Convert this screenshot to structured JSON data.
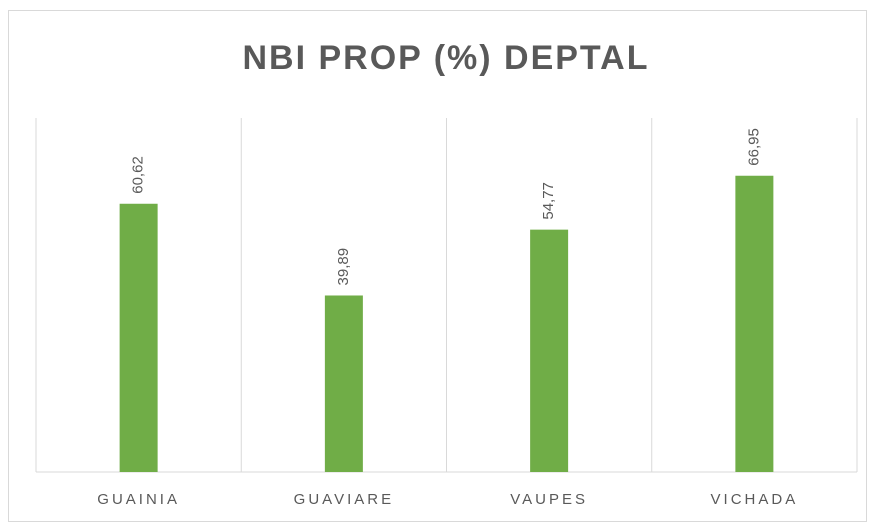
{
  "chart_data": {
    "type": "bar",
    "title": "NBI PROP (%) DEPTAL",
    "categories": [
      "GUAINIA",
      "GUAVIARE",
      "VAUPES",
      "VICHADA"
    ],
    "values": [
      60.62,
      39.89,
      54.77,
      66.95
    ],
    "value_labels": [
      "60,62",
      "39,89",
      "54,77",
      "66,95"
    ],
    "color": "#70ad47",
    "ylim": [
      0,
      80
    ]
  }
}
